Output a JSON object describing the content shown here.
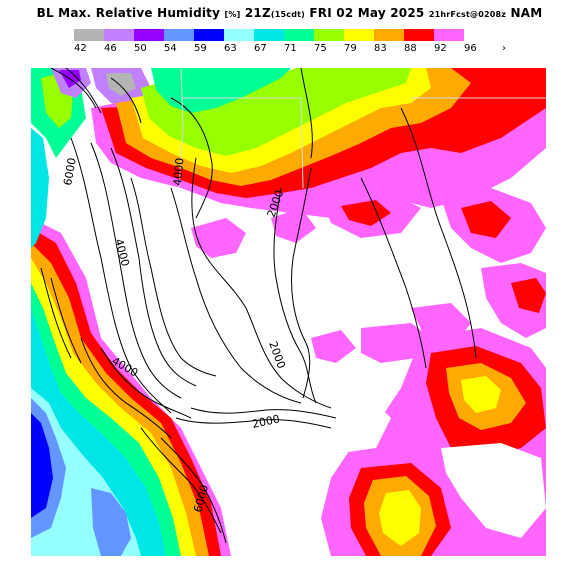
{
  "header": {
    "field": "BL Max. Relative Humidity",
    "units": "[%]",
    "valid_time": "21Z",
    "local_time": "(15cdt)",
    "date": "FRI 02 May 2025",
    "forecast": "21hrFcst@0208z",
    "model": "NAM"
  },
  "legend": {
    "values": [
      "42",
      "46",
      "50",
      "54",
      "59",
      "63",
      "67",
      "71",
      "75",
      "79",
      "83",
      "88",
      "92",
      "96"
    ],
    "colors": [
      "#b4b4b4",
      "#c080ff",
      "#9600ff",
      "#6496ff",
      "#0000ff",
      "#96ffff",
      "#00e6e6",
      "#00ff96",
      "#96ff00",
      "#ffff00",
      "#ffaa00",
      "#ff0000",
      "#ff66ff",
      "#ffffff"
    ],
    "more_arrow": "›"
  },
  "map": {
    "contour_labels": [
      {
        "text": "6000"
      },
      {
        "text": "4000"
      },
      {
        "text": "4000"
      },
      {
        "text": "2000"
      },
      {
        "text": "2000"
      },
      {
        "text": "4000"
      },
      {
        "text": "2000"
      },
      {
        "text": "6000"
      }
    ]
  }
}
